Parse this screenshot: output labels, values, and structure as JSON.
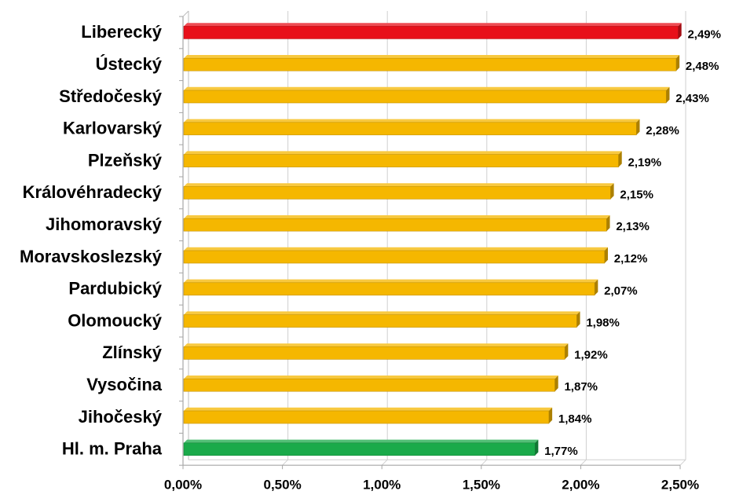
{
  "chart_data": {
    "type": "bar",
    "orientation": "horizontal",
    "title": "",
    "xlabel": "",
    "ylabel": "",
    "categories": [
      "Liberecký",
      "Ústecký",
      "Středočeský",
      "Karlovarský",
      "Plzeňský",
      "Královéhradecký",
      "Jihomoravský",
      "Moravskoslezský",
      "Pardubický",
      "Olomoucký",
      "Zlínský",
      "Vysočina",
      "Jihočeský",
      "Hl. m. Praha"
    ],
    "values": [
      2.49,
      2.48,
      2.43,
      2.28,
      2.19,
      2.15,
      2.13,
      2.12,
      2.07,
      1.98,
      1.92,
      1.87,
      1.84,
      1.77
    ],
    "value_labels": [
      "2,49%",
      "2,48%",
      "2,43%",
      "2,28%",
      "2,19%",
      "2,15%",
      "2,13%",
      "2,12%",
      "2,07%",
      "1,98%",
      "1,92%",
      "1,87%",
      "1,84%",
      "1,77%"
    ],
    "bar_colors": [
      "#e8101a",
      "#f5b700",
      "#f5b700",
      "#f5b700",
      "#f5b700",
      "#f5b700",
      "#f5b700",
      "#f5b700",
      "#f5b700",
      "#f5b700",
      "#f5b700",
      "#f5b700",
      "#f5b700",
      "#1aaa4a"
    ],
    "xlim": [
      0,
      2.5
    ],
    "x_ticks": [
      0,
      0.5,
      1.0,
      1.5,
      2.0,
      2.5
    ],
    "x_tick_labels": [
      "0,00%",
      "0,50%",
      "1,00%",
      "1,50%",
      "2,00%",
      "2,50%"
    ],
    "grid": true,
    "style": "3d",
    "legend": "none"
  }
}
